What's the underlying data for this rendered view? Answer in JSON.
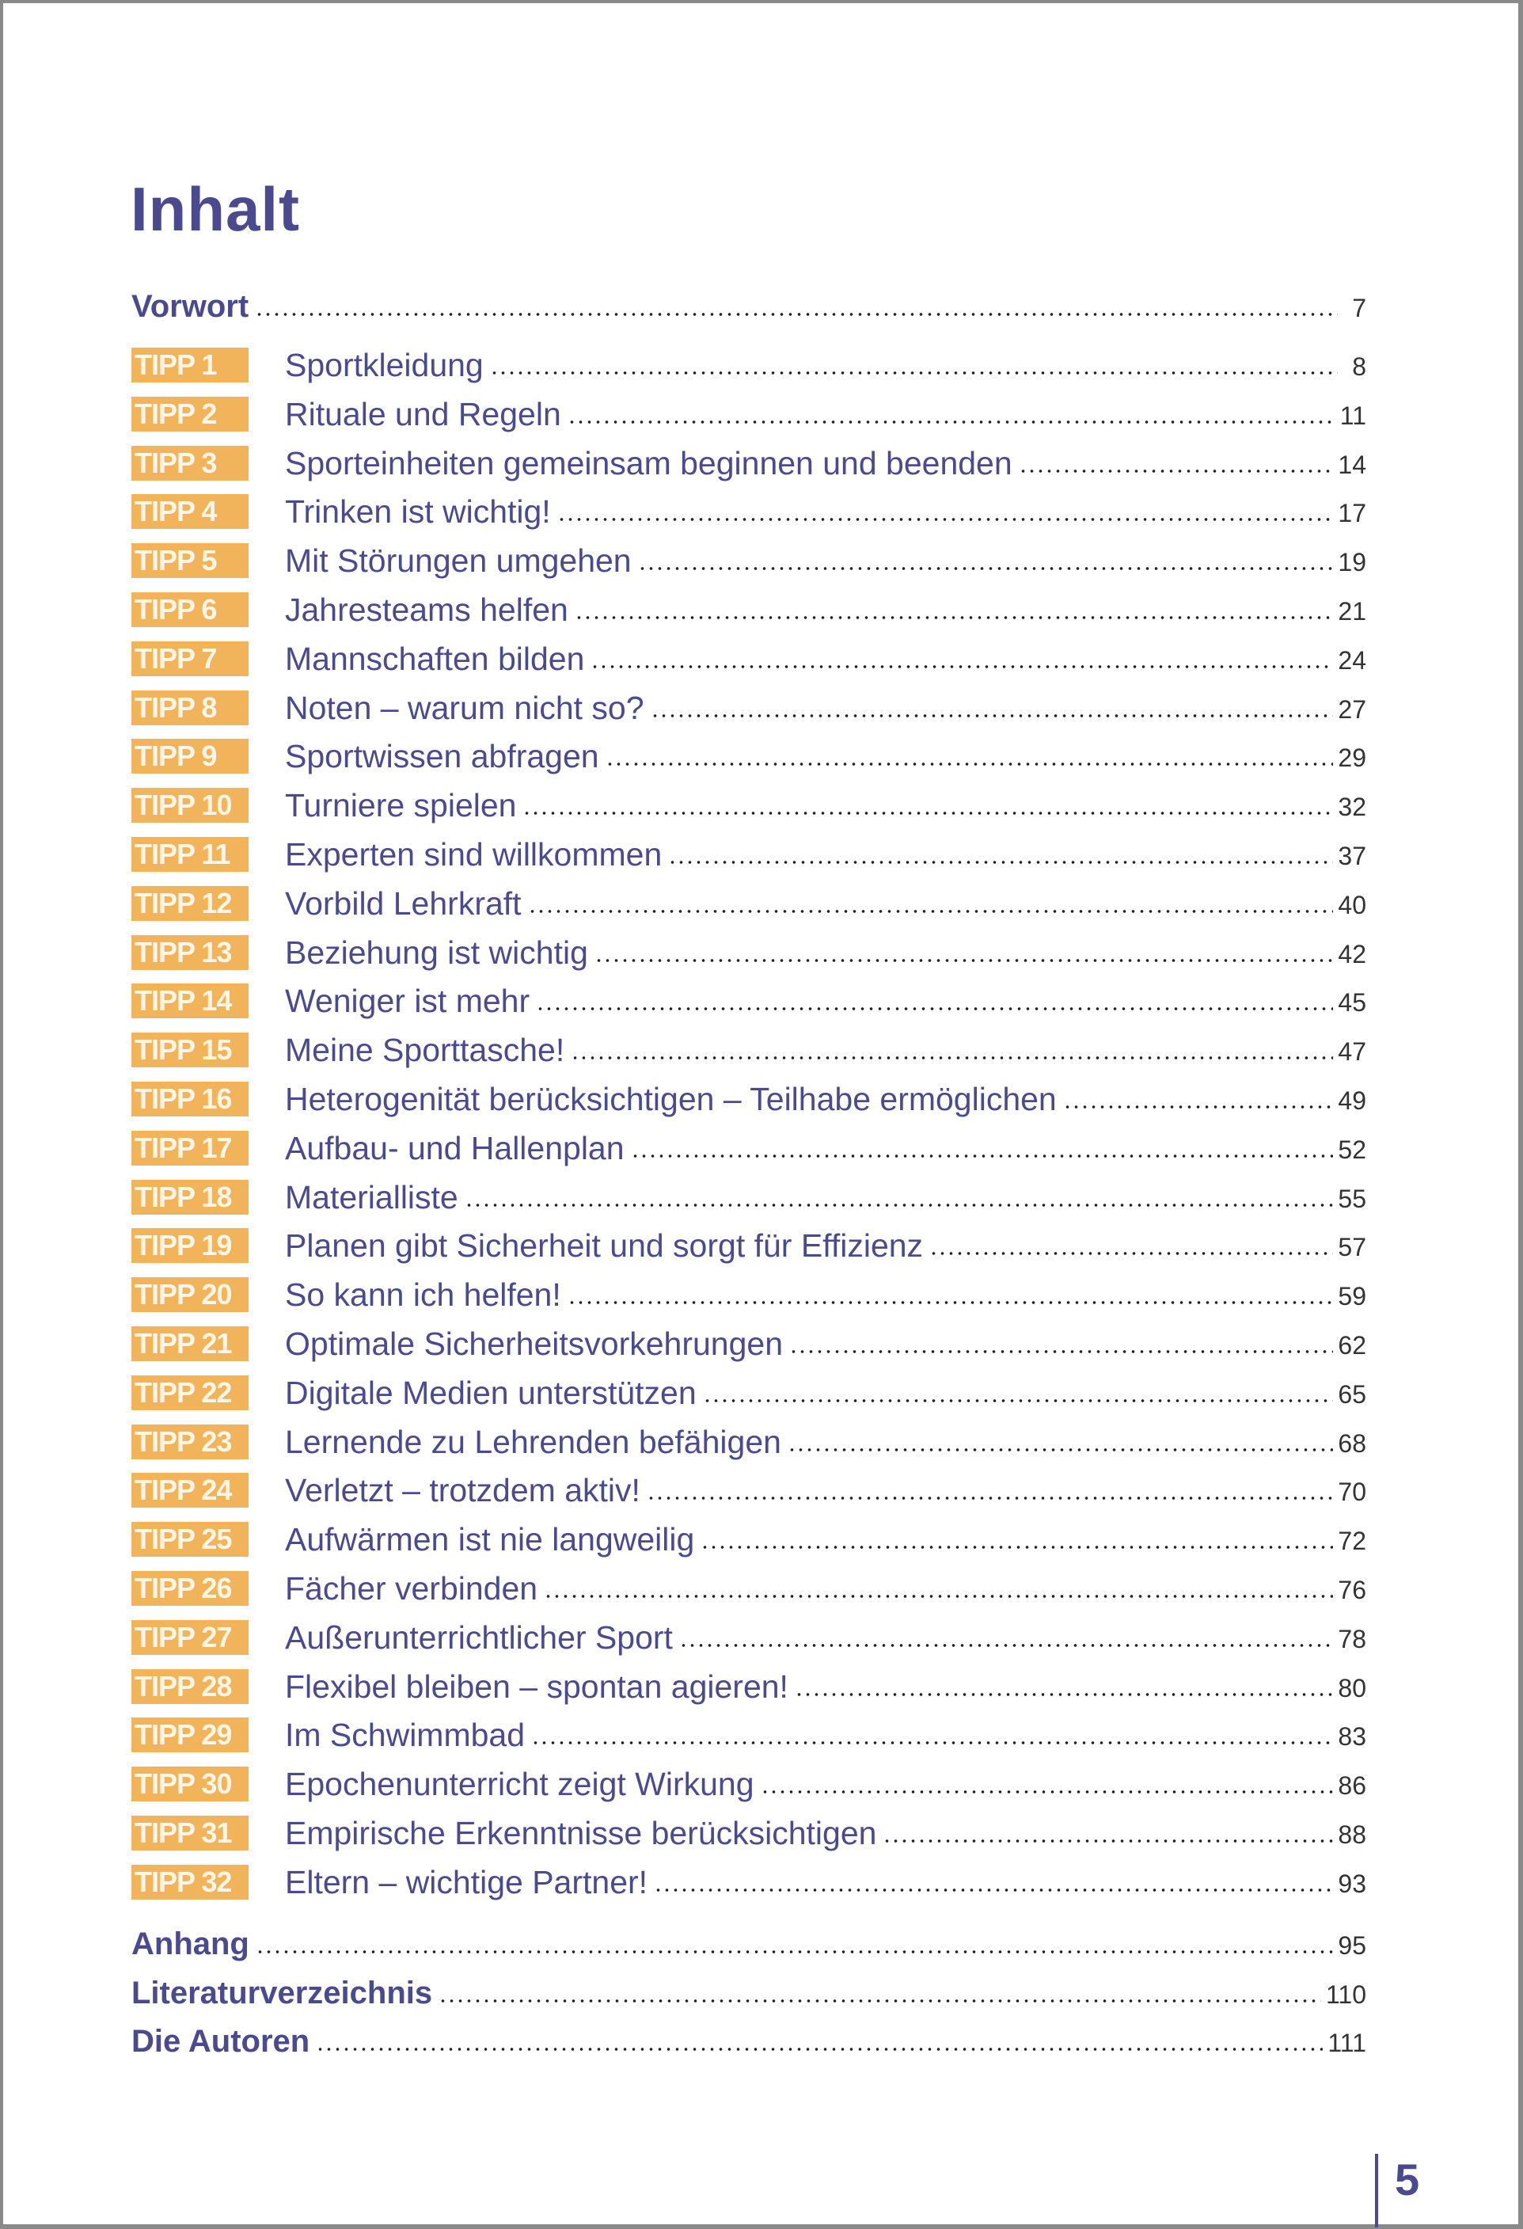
{
  "title": "Inhalt",
  "colors": {
    "text": "#4b4a8e",
    "badge": "#f2b45a"
  },
  "front": [
    {
      "label": "Vorwort",
      "page": "7"
    }
  ],
  "tipps": [
    {
      "badge": "TIPP 1",
      "label": "Sportkleidung",
      "page": "8"
    },
    {
      "badge": "TIPP 2",
      "label": "Rituale und Regeln",
      "page": "11"
    },
    {
      "badge": "TIPP 3",
      "label": "Sporteinheiten gemeinsam beginnen und beenden",
      "page": "14"
    },
    {
      "badge": "TIPP 4",
      "label": "Trinken ist wichtig!",
      "page": "17"
    },
    {
      "badge": "TIPP 5",
      "label": "Mit Störungen umgehen",
      "page": "19"
    },
    {
      "badge": "TIPP 6",
      "label": "Jahresteams helfen",
      "page": "21"
    },
    {
      "badge": "TIPP 7",
      "label": "Mannschaften bilden",
      "page": "24"
    },
    {
      "badge": "TIPP 8",
      "label": "Noten – warum nicht so?",
      "page": "27"
    },
    {
      "badge": "TIPP 9",
      "label": "Sportwissen abfragen",
      "page": "29"
    },
    {
      "badge": "TIPP 10",
      "label": "Turniere spielen",
      "page": "32"
    },
    {
      "badge": "TIPP 11",
      "label": "Experten sind willkommen",
      "page": "37"
    },
    {
      "badge": "TIPP 12",
      "label": "Vorbild Lehrkraft",
      "page": "40"
    },
    {
      "badge": "TIPP 13",
      "label": "Beziehung ist wichtig",
      "page": "42"
    },
    {
      "badge": "TIPP 14",
      "label": "Weniger ist mehr",
      "page": "45"
    },
    {
      "badge": "TIPP 15",
      "label": "Meine Sporttasche!",
      "page": "47"
    },
    {
      "badge": "TIPP 16",
      "label": "Heterogenität berücksichtigen – Teilhabe ermöglichen",
      "page": "49"
    },
    {
      "badge": "TIPP 17",
      "label": "Aufbau- und Hallenplan",
      "page": "52"
    },
    {
      "badge": "TIPP 18",
      "label": "Materialliste",
      "page": "55"
    },
    {
      "badge": "TIPP 19",
      "label": "Planen gibt Sicherheit und sorgt für Effizienz",
      "page": "57"
    },
    {
      "badge": "TIPP 20",
      "label": "So kann ich helfen!",
      "page": "59"
    },
    {
      "badge": "TIPP 21",
      "label": "Optimale Sicherheitsvorkehrungen",
      "page": "62"
    },
    {
      "badge": "TIPP 22",
      "label": "Digitale Medien unterstützen",
      "page": "65"
    },
    {
      "badge": "TIPP 23",
      "label": "Lernende zu Lehrenden befähigen",
      "page": "68"
    },
    {
      "badge": "TIPP 24",
      "label": "Verletzt – trotzdem aktiv!",
      "page": "70"
    },
    {
      "badge": "TIPP 25",
      "label": "Aufwärmen ist nie langweilig",
      "page": "72"
    },
    {
      "badge": "TIPP 26",
      "label": "Fächer verbinden",
      "page": "76"
    },
    {
      "badge": "TIPP 27",
      "label": "Außerunterrichtlicher Sport",
      "page": "78"
    },
    {
      "badge": "TIPP 28",
      "label": "Flexibel bleiben – spontan agieren!",
      "page": "80"
    },
    {
      "badge": "TIPP 29",
      "label": "Im Schwimmbad",
      "page": "83"
    },
    {
      "badge": "TIPP 30",
      "label": "Epochenunterricht zeigt Wirkung",
      "page": "86"
    },
    {
      "badge": "TIPP 31",
      "label": "Empirische Erkenntnisse berücksichtigen",
      "page": "88"
    },
    {
      "badge": "TIPP 32",
      "label": "Eltern – wichtige Partner!",
      "page": "93"
    }
  ],
  "back": [
    {
      "label": "Anhang",
      "page": "95"
    },
    {
      "label": "Literaturverzeichnis",
      "page": "110"
    },
    {
      "label": "Die Autoren",
      "page": "111"
    }
  ],
  "page_number": "5"
}
